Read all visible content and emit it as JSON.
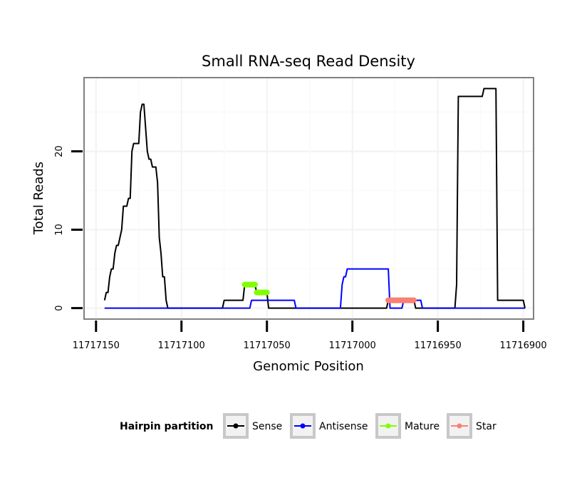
{
  "chart_data": {
    "type": "line",
    "title": "Small RNA-seq Read Density",
    "xlabel": "Genomic Position",
    "ylabel": "Total Reads",
    "x_reversed": true,
    "xlim": [
      11717157,
      11716894
    ],
    "ylim": [
      -1.4,
      29.4
    ],
    "xticks": [
      11717150,
      11717100,
      11717050,
      11717000,
      11716950,
      11716900
    ],
    "xtick_labels": [
      "11717150",
      "11717100",
      "11717050",
      "11717000",
      "11716950",
      "11716900"
    ],
    "yticks": [
      0,
      10,
      20
    ],
    "ytick_labels": [
      "0",
      "10",
      "20"
    ],
    "grid": true,
    "legend": {
      "title": "Hairpin partition",
      "position": "bottom",
      "entries": [
        "Sense",
        "Antisense",
        "Mature",
        "Star"
      ]
    },
    "series": [
      {
        "name": "Sense",
        "color": "#000000",
        "points": [
          [
            11717145,
            1
          ],
          [
            11717144,
            2
          ],
          [
            11717143,
            2
          ],
          [
            11717142,
            4
          ],
          [
            11717141,
            5
          ],
          [
            11717140,
            5
          ],
          [
            11717139,
            7
          ],
          [
            11717138,
            8
          ],
          [
            11717137,
            8
          ],
          [
            11717136,
            9
          ],
          [
            11717135,
            10
          ],
          [
            11717134,
            13
          ],
          [
            11717133,
            13
          ],
          [
            11717132,
            13
          ],
          [
            11717131,
            14
          ],
          [
            11717130,
            14
          ],
          [
            11717129,
            20
          ],
          [
            11717128,
            21
          ],
          [
            11717127,
            21
          ],
          [
            11717126,
            21
          ],
          [
            11717125,
            21
          ],
          [
            11717124,
            25
          ],
          [
            11717123,
            26
          ],
          [
            11717122,
            26
          ],
          [
            11717121,
            23
          ],
          [
            11717120,
            20
          ],
          [
            11717119,
            19
          ],
          [
            11717118,
            19
          ],
          [
            11717117,
            18
          ],
          [
            11717116,
            18
          ],
          [
            11717115,
            18
          ],
          [
            11717114,
            16
          ],
          [
            11717113,
            9
          ],
          [
            11717112,
            7
          ],
          [
            11717111,
            4
          ],
          [
            11717110,
            4
          ],
          [
            11717109,
            1
          ],
          [
            11717108,
            0
          ],
          [
            11717076,
            0
          ],
          [
            11717075,
            1
          ],
          [
            11717064,
            1
          ],
          [
            11717063,
            3
          ],
          [
            11717057,
            3
          ],
          [
            11717056,
            2
          ],
          [
            11717050,
            2
          ],
          [
            11717049,
            0
          ],
          [
            11716980,
            0
          ],
          [
            11716979,
            1
          ],
          [
            11716964,
            1
          ],
          [
            11716963,
            0
          ],
          [
            11716940,
            0
          ],
          [
            11716939,
            3
          ],
          [
            11716938,
            27
          ],
          [
            11716924,
            27
          ],
          [
            11716923,
            28
          ],
          [
            11716916,
            28
          ],
          [
            11716915,
            1
          ],
          [
            11716900,
            1
          ],
          [
            11716899,
            0
          ]
        ]
      },
      {
        "name": "Antisense",
        "color": "#0000ff",
        "points": [
          [
            11717145,
            0
          ],
          [
            11717060,
            0
          ],
          [
            11717059,
            1
          ],
          [
            11717034,
            1
          ],
          [
            11717033,
            0
          ],
          [
            11717007,
            0
          ],
          [
            11717006,
            3
          ],
          [
            11717005,
            4
          ],
          [
            11717004,
            4
          ],
          [
            11717003,
            5
          ],
          [
            11716979,
            5
          ],
          [
            11716978,
            0
          ],
          [
            11716971,
            0
          ],
          [
            11716970,
            1
          ],
          [
            11716960,
            1
          ],
          [
            11716959,
            0
          ],
          [
            11716899,
            0
          ]
        ]
      },
      {
        "name": "Mature",
        "color": "#7fff00",
        "segments": [
          [
            [
              11717063,
              3
            ],
            [
              11717057,
              3
            ]
          ],
          [
            [
              11717056,
              2
            ],
            [
              11717050,
              2
            ]
          ]
        ]
      },
      {
        "name": "Star",
        "color": "#fa8072",
        "segments": [
          [
            [
              11716979,
              1
            ],
            [
              11716964,
              1
            ]
          ]
        ]
      }
    ]
  }
}
